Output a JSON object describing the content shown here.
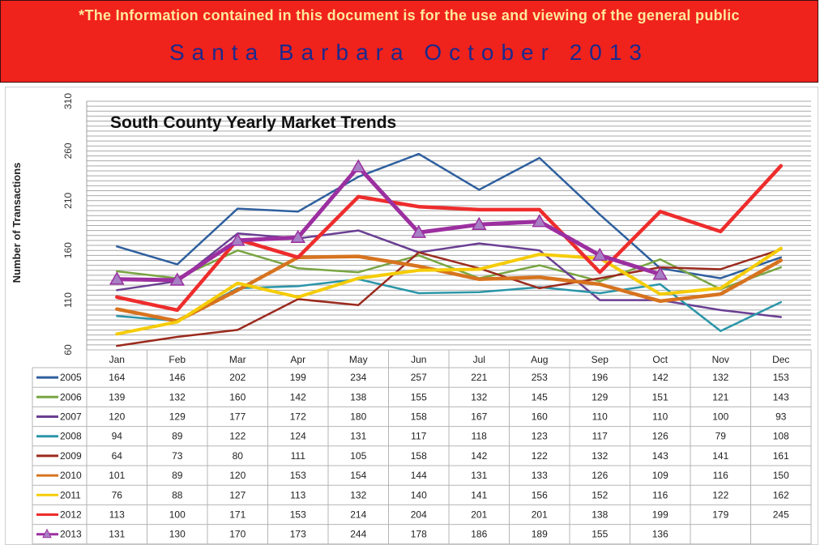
{
  "banner": {
    "notice": "*The Information contained in this document is for the use and viewing of the general public",
    "subtitle": "Santa Barbara October 2013",
    "background": "#f0221c",
    "notice_color": "#ffe89a",
    "subtitle_color": "#1c2a8c"
  },
  "chart_data": {
    "type": "line",
    "title": "South County Yearly Market Trends",
    "xlabel": "",
    "ylabel": "Number of Transactions",
    "ylim": [
      60,
      310
    ],
    "yticks": [
      60,
      110,
      160,
      210,
      260,
      310
    ],
    "grid": true,
    "legend": "data table below chart",
    "categories": [
      "Jan",
      "Feb",
      "Mar",
      "Apr",
      "May",
      "Jun",
      "Jul",
      "Aug",
      "Sep",
      "Oct",
      "Nov",
      "Dec"
    ],
    "series": [
      {
        "name": "2005",
        "color": "#2e5f9e",
        "values": [
          164,
          146,
          202,
          199,
          234,
          257,
          221,
          253,
          196,
          142,
          132,
          153
        ]
      },
      {
        "name": "2006",
        "color": "#79a542",
        "values": [
          139,
          132,
          160,
          142,
          138,
          155,
          132,
          145,
          129,
          151,
          121,
          143
        ]
      },
      {
        "name": "2007",
        "color": "#6a3f93",
        "values": [
          120,
          129,
          177,
          172,
          180,
          158,
          167,
          160,
          110,
          110,
          100,
          93
        ]
      },
      {
        "name": "2008",
        "color": "#2a95a8",
        "values": [
          94,
          89,
          122,
          124,
          131,
          117,
          118,
          123,
          117,
          126,
          79,
          108
        ]
      },
      {
        "name": "2009",
        "color": "#9b2a1e",
        "values": [
          64,
          73,
          80,
          111,
          105,
          158,
          142,
          122,
          132,
          143,
          141,
          161
        ]
      },
      {
        "name": "2010",
        "color": "#d7731f",
        "values": [
          101,
          89,
          120,
          153,
          154,
          144,
          131,
          133,
          126,
          109,
          116,
          150
        ]
      },
      {
        "name": "2011",
        "color": "#f5cc08",
        "values": [
          76,
          88,
          127,
          113,
          132,
          140,
          141,
          156,
          152,
          116,
          122,
          162
        ]
      },
      {
        "name": "2012",
        "color": "#ee2c2c",
        "values": [
          113,
          100,
          171,
          153,
          214,
          204,
          201,
          201,
          138,
          199,
          179,
          245
        ]
      },
      {
        "name": "2013",
        "color": "#9c2fa0",
        "values": [
          131,
          130,
          170,
          173,
          244,
          178,
          186,
          189,
          155,
          136,
          null,
          null
        ]
      }
    ]
  }
}
